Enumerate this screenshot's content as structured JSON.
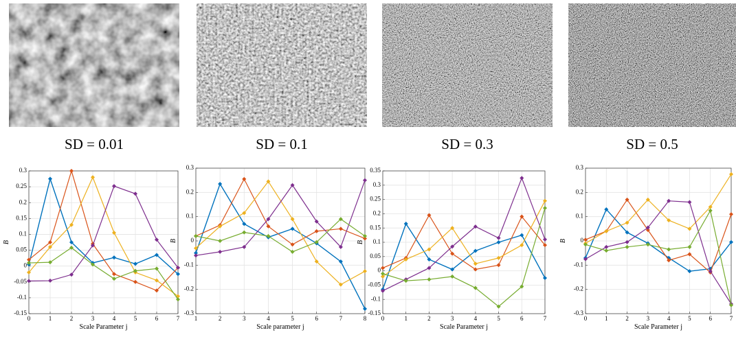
{
  "images": [
    {
      "caption": "SD = 0.01"
    },
    {
      "caption": "SD = 0.1"
    },
    {
      "caption": "SD = 0.3"
    },
    {
      "caption": "SD = 0.5"
    }
  ],
  "chart_data": [
    {
      "type": "line",
      "xlabel": "Scale Parameter j",
      "ylabel": "B",
      "grid": true,
      "x": [
        0,
        1,
        2,
        3,
        4,
        5,
        6,
        7
      ],
      "xlim": [
        0,
        7
      ],
      "xticks": [
        0,
        1,
        2,
        3,
        4,
        5,
        6,
        7
      ],
      "ylim": [
        -0.15,
        0.3
      ],
      "yticks": [
        -0.15,
        -0.1,
        -0.05,
        0,
        0.05,
        0.1,
        0.15,
        0.2,
        0.25,
        0.3
      ],
      "series": [
        {
          "color": "#0072BD",
          "values": [
            0.005,
            0.275,
            0.075,
            0.01,
            0.027,
            0.007,
            0.035,
            -0.025
          ]
        },
        {
          "color": "#D95319",
          "values": [
            0.02,
            0.075,
            0.3,
            0.07,
            -0.025,
            -0.05,
            -0.077,
            -0.005
          ]
        },
        {
          "color": "#EDB120",
          "values": [
            -0.02,
            0.06,
            0.13,
            0.28,
            0.105,
            -0.02,
            -0.045,
            -0.095
          ]
        },
        {
          "color": "#7E2F8E",
          "values": [
            -0.047,
            -0.046,
            -0.027,
            0.065,
            0.252,
            0.228,
            0.083,
            -0.005
          ]
        },
        {
          "color": "#77AC30",
          "values": [
            0.01,
            0.012,
            0.058,
            0.005,
            -0.04,
            -0.015,
            -0.008,
            -0.105
          ]
        }
      ]
    },
    {
      "type": "line",
      "xlabel": "Scale parameter j",
      "ylabel": "B",
      "grid": true,
      "x": [
        1,
        2,
        3,
        4,
        5,
        6,
        7,
        8
      ],
      "xlim": [
        1,
        8
      ],
      "xticks": [
        1,
        2,
        3,
        4,
        5,
        6,
        7,
        8
      ],
      "ylim": [
        -0.3,
        0.3
      ],
      "yticks": [
        -0.3,
        -0.2,
        -0.1,
        0,
        0.1,
        0.2,
        0.3
      ],
      "series": [
        {
          "color": "#0072BD",
          "values": [
            -0.05,
            0.235,
            0.07,
            0.015,
            0.05,
            -0.01,
            -0.085,
            -0.28
          ]
        },
        {
          "color": "#D95319",
          "values": [
            0.02,
            0.065,
            0.255,
            0.06,
            -0.015,
            0.04,
            0.05,
            0.01
          ]
        },
        {
          "color": "#EDB120",
          "values": [
            -0.03,
            0.06,
            0.115,
            0.245,
            0.09,
            -0.085,
            -0.18,
            -0.125
          ]
        },
        {
          "color": "#7E2F8E",
          "values": [
            -0.06,
            -0.045,
            -0.025,
            0.09,
            0.23,
            0.08,
            -0.025,
            0.25
          ]
        },
        {
          "color": "#77AC30",
          "values": [
            0.02,
            0.0,
            0.035,
            0.02,
            -0.045,
            -0.005,
            0.09,
            0.02
          ]
        }
      ]
    },
    {
      "type": "line",
      "xlabel": "Scale Parameter j",
      "ylabel": "B",
      "grid": true,
      "x": [
        0,
        1,
        2,
        3,
        4,
        5,
        6,
        7
      ],
      "xlim": [
        0,
        7
      ],
      "xticks": [
        0,
        1,
        2,
        3,
        4,
        5,
        6,
        7
      ],
      "ylim": [
        -0.15,
        0.35
      ],
      "yticks": [
        -0.15,
        -0.1,
        -0.05,
        0,
        0.05,
        0.1,
        0.15,
        0.2,
        0.25,
        0.3,
        0.35
      ],
      "series": [
        {
          "color": "#0072BD",
          "values": [
            -0.065,
            0.165,
            0.04,
            0.005,
            0.07,
            0.1,
            0.125,
            -0.025
          ]
        },
        {
          "color": "#D95319",
          "values": [
            0.01,
            0.045,
            0.195,
            0.06,
            0.005,
            0.02,
            0.19,
            0.09
          ]
        },
        {
          "color": "#EDB120",
          "values": [
            -0.02,
            0.04,
            0.075,
            0.15,
            0.025,
            0.045,
            0.09,
            0.245
          ]
        },
        {
          "color": "#7E2F8E",
          "values": [
            -0.07,
            -0.03,
            0.01,
            0.085,
            0.155,
            0.115,
            0.325,
            0.11
          ]
        },
        {
          "color": "#77AC30",
          "values": [
            -0.01,
            -0.035,
            -0.03,
            -0.02,
            -0.06,
            -0.125,
            -0.055,
            0.22
          ]
        }
      ]
    },
    {
      "type": "line",
      "xlabel": "Scale Parameter j",
      "ylabel": "B",
      "grid": true,
      "x": [
        0,
        1,
        2,
        3,
        4,
        5,
        6,
        7
      ],
      "xlim": [
        0,
        7
      ],
      "xticks": [
        0,
        1,
        2,
        3,
        4,
        5,
        6,
        7
      ],
      "ylim": [
        -0.3,
        0.3
      ],
      "yticks": [
        -0.3,
        -0.2,
        -0.1,
        0,
        0.1,
        0.2,
        0.3
      ],
      "series": [
        {
          "color": "#0072BD",
          "values": [
            -0.07,
            0.13,
            0.035,
            -0.01,
            -0.07,
            -0.125,
            -0.115,
            -0.005
          ]
        },
        {
          "color": "#D95319",
          "values": [
            0.005,
            0.04,
            0.17,
            0.045,
            -0.08,
            -0.055,
            -0.13,
            0.11
          ]
        },
        {
          "color": "#EDB120",
          "values": [
            -0.01,
            0.04,
            0.075,
            0.17,
            0.085,
            0.05,
            0.14,
            0.275
          ]
        },
        {
          "color": "#7E2F8E",
          "values": [
            -0.075,
            -0.025,
            -0.005,
            0.055,
            0.165,
            0.16,
            -0.125,
            -0.26
          ]
        },
        {
          "color": "#77AC30",
          "values": [
            -0.015,
            -0.04,
            -0.025,
            -0.015,
            -0.035,
            -0.025,
            0.125,
            -0.265
          ]
        }
      ]
    }
  ]
}
